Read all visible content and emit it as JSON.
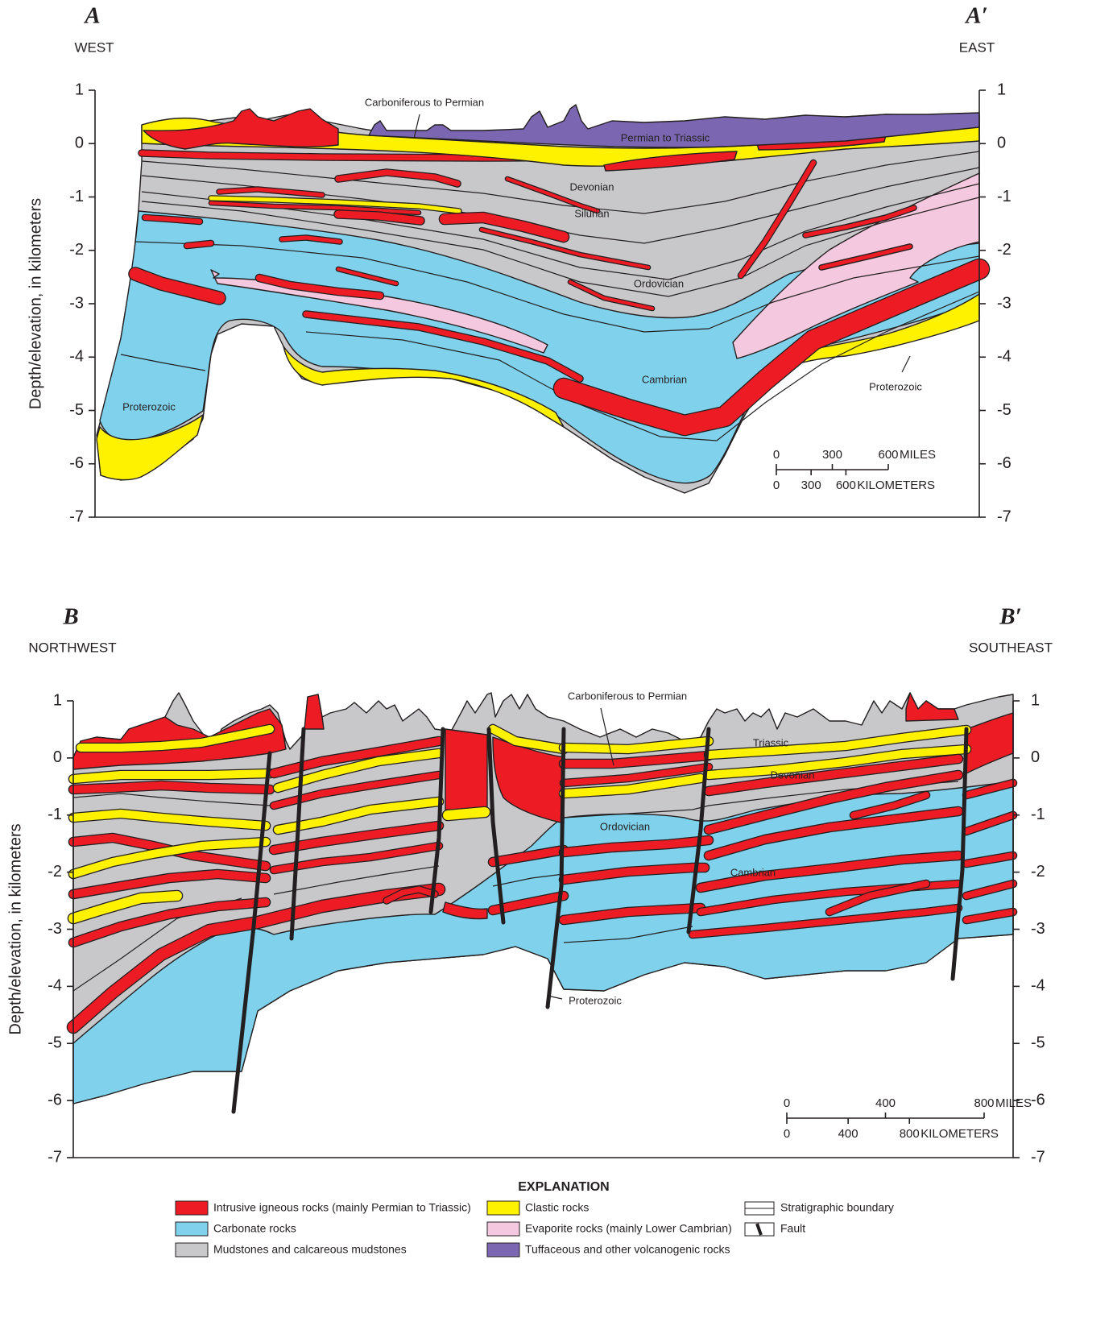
{
  "sections": [
    {
      "label": "A",
      "end_label": "A′",
      "left_direction": "WEST",
      "right_direction": "EAST",
      "y_axis_label": "Depth/elevation, in kilometers",
      "ylim": [
        -7,
        1
      ],
      "yticks": [
        1,
        0,
        -1,
        -2,
        -3,
        -4,
        -5,
        -6,
        -7
      ],
      "units": [
        "Carboniferous to Permian",
        "Permian to Triassic",
        "Devonian",
        "Silurian",
        "Ordovician",
        "Cambrian",
        "Proterozoic",
        "Proterozoic"
      ],
      "scale": {
        "miles": [
          0,
          300,
          600
        ],
        "miles_label": "MILES",
        "kilometers": [
          0,
          300,
          600
        ],
        "kilometers_label": "KILOMETERS"
      }
    },
    {
      "label": "B",
      "end_label": "B′",
      "left_direction": "NORTHWEST",
      "right_direction": "SOUTHEAST",
      "y_axis_label": "Depth/elevation, in kilometers",
      "ylim": [
        -7,
        1
      ],
      "yticks": [
        1,
        0,
        -1,
        -2,
        -3,
        -4,
        -5,
        -6,
        -7
      ],
      "units": [
        "Carboniferous to Permian",
        "Triassic",
        "Devonian",
        "Ordovician",
        "Cambrian",
        "Proterozoic"
      ],
      "scale": {
        "miles": [
          0,
          400,
          800
        ],
        "miles_label": "MILES",
        "kilometers": [
          0,
          400,
          800
        ],
        "kilometers_label": "KILOMETERS"
      }
    }
  ],
  "legend": {
    "title": "EXPLANATION",
    "rock_units": [
      {
        "label": "Intrusive igneous rocks (mainly Permian to Triassic)",
        "color": "#ed1c24"
      },
      {
        "label": "Carbonate rocks",
        "color": "#80d2ec"
      },
      {
        "label": "Mudstones and calcareous mudstones",
        "color": "#c8c8ca"
      },
      {
        "label": "Clastic rocks",
        "color": "#fff200"
      },
      {
        "label": "Evaporite rocks (mainly Lower Cambrian)",
        "color": "#f4c8de"
      },
      {
        "label": "Tuffaceous and other volcanogenic rocks",
        "color": "#7b67b1"
      }
    ],
    "symbols": [
      "Stratigraphic boundary",
      "Fault"
    ]
  }
}
